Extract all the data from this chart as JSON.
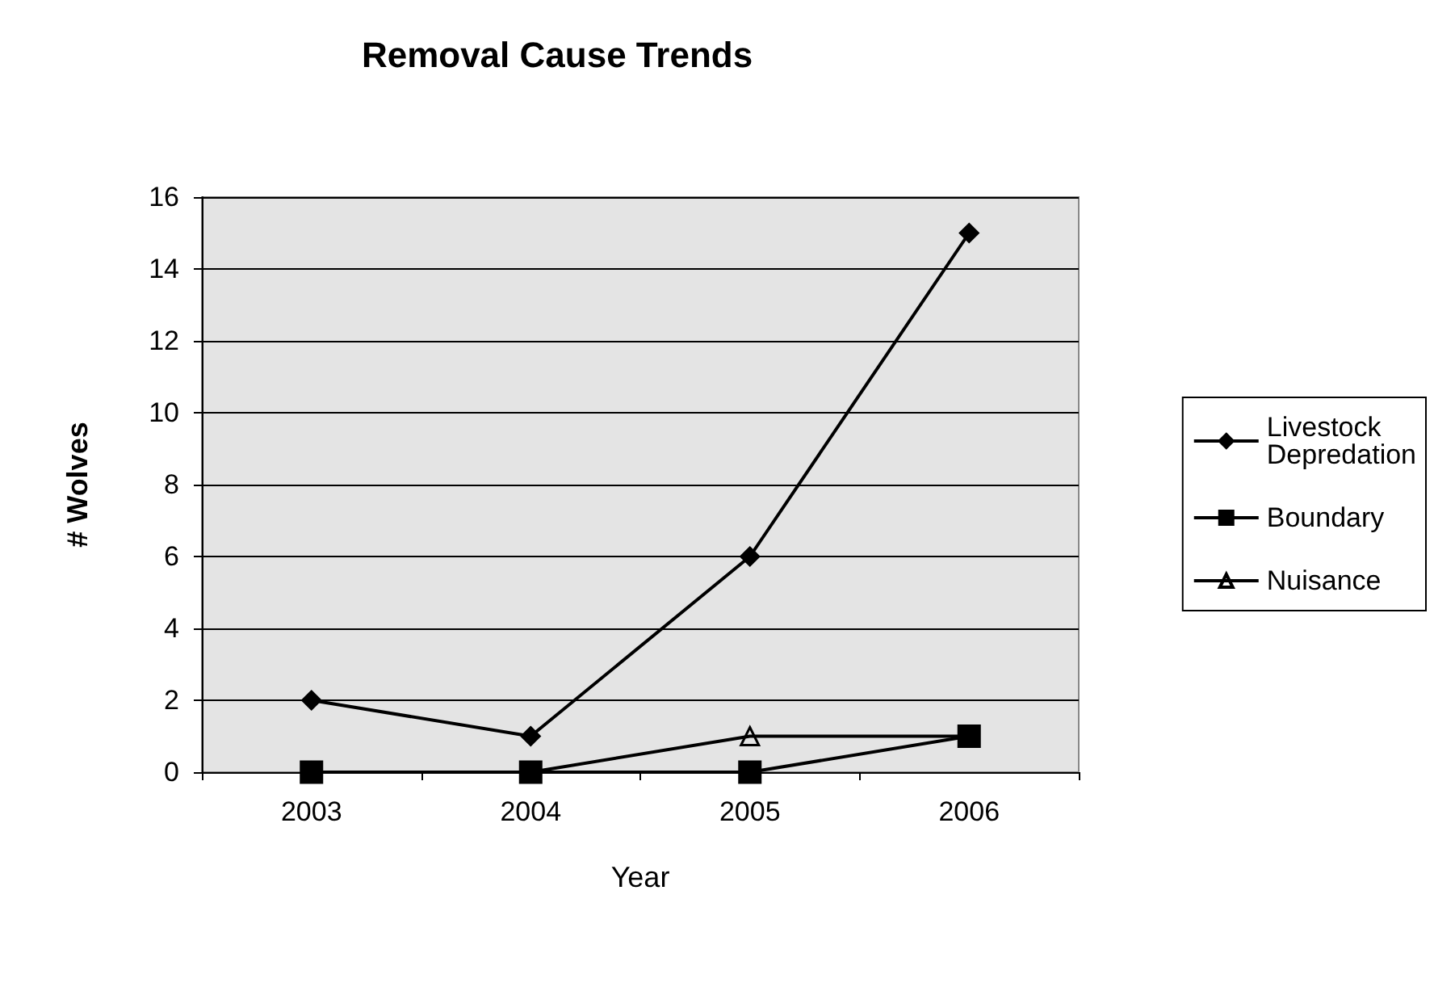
{
  "chart_data": {
    "type": "line",
    "title": "Removal Cause Trends",
    "xlabel": "Year",
    "ylabel": "# Wolves",
    "categories": [
      "2003",
      "2004",
      "2005",
      "2006"
    ],
    "series": [
      {
        "name": "Livestock Depredation",
        "color": "#000000",
        "marker": "diamond",
        "values": [
          2,
          1,
          6,
          15
        ]
      },
      {
        "name": "Boundary",
        "color": "#000000",
        "marker": "square",
        "values": [
          0,
          0,
          0,
          1
        ]
      },
      {
        "name": "Nuisance",
        "color": "#000000",
        "marker": "triangle",
        "values": [
          0,
          0,
          1,
          1
        ]
      }
    ],
    "ylim": [
      0,
      16
    ],
    "yticks": [
      0,
      2,
      4,
      6,
      8,
      10,
      12,
      14,
      16
    ],
    "grid": "y",
    "legend": "right"
  }
}
